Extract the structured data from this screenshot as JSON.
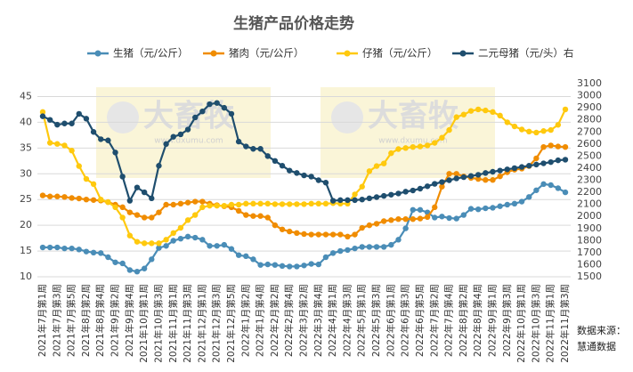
{
  "chart_data": {
    "type": "line",
    "title": "生猪产品价格走势",
    "watermark": {
      "brand": "大畜牧",
      "site": "www.dxumu.com"
    },
    "source_label": "数据来源：",
    "source": "慧通数据",
    "categories": [
      "2021年7月第1周",
      null,
      "2021年7月第3周",
      null,
      "2021年7月第5周",
      null,
      "2021年8月第2周",
      null,
      "2021年8月第4周",
      null,
      "2021年9月第2周",
      null,
      "2021年9月第4周",
      null,
      "2021年10月第1周",
      null,
      "2021年10月第3周",
      null,
      "2021年11月第1周",
      null,
      "2021年11月第3周",
      null,
      "2021年12月第1周",
      null,
      "2021年12月第3周",
      null,
      "2021年12月第5周",
      null,
      "2022年1月第2周",
      null,
      "2022年1月第4周",
      null,
      "2022年2月第2周",
      null,
      "2022年2月第4周",
      null,
      "2022年3月第2周",
      null,
      "2022年3月第4周",
      null,
      "2022年4月第1周",
      null,
      "2022年4月第3周",
      null,
      "2022年5月第1周",
      null,
      "2022年5月第3周",
      null,
      "2022年6月第1周",
      null,
      "2022年6月第3周",
      null,
      "2022年6月第5周",
      null,
      "2022年7月第2周",
      null,
      "2022年7月第4周",
      null,
      "2022年8月第2周",
      null,
      "2022年8月第4周",
      null,
      "2022年9月第1周",
      null,
      "2022年9月第3周",
      null,
      "2022年10月第1周",
      null,
      "2022年10月第3周",
      null,
      "2022年11月第1周",
      null,
      "2022年11月第3周"
    ],
    "series": [
      {
        "name": "生猪（元/公斤）",
        "color": "#4a8db7",
        "values": [
          15.7,
          15.7,
          15.7,
          15.5,
          15.5,
          15.3,
          14.9,
          14.7,
          14.6,
          13.8,
          12.8,
          12.6,
          11.3,
          11.0,
          11.6,
          13.4,
          15.6,
          16.0,
          17.0,
          17.4,
          17.8,
          17.6,
          17.2,
          16.0,
          16.0,
          16.2,
          15.4,
          14.2,
          14.0,
          13.4,
          12.3,
          12.4,
          12.3,
          12.1,
          12.0,
          12.0,
          12.2,
          12.5,
          12.4,
          13.8,
          14.6,
          15.0,
          15.2,
          15.5,
          15.8,
          15.8,
          15.8,
          15.8,
          16.2,
          17.2,
          19.4,
          23.0,
          23.0,
          22.5,
          21.5,
          21.7,
          21.4,
          21.3,
          22.0,
          23.2,
          23.1,
          23.3,
          23.4,
          23.7,
          24.0,
          24.2,
          24.6,
          25.5,
          26.8,
          28.0,
          27.8,
          27.2,
          26.4
        ]
      },
      {
        "name": "猪肉（元/公斤）",
        "color": "#f08c00",
        "values": [
          25.8,
          25.6,
          25.6,
          25.5,
          25.3,
          25.2,
          25.0,
          24.9,
          24.8,
          24.5,
          24.0,
          23.5,
          22.5,
          22.0,
          21.5,
          21.5,
          22.5,
          24.0,
          24.0,
          24.2,
          24.4,
          24.6,
          24.6,
          24.2,
          23.9,
          23.7,
          23.5,
          22.8,
          22.0,
          21.8,
          21.8,
          21.5,
          20.0,
          19.2,
          18.8,
          18.5,
          18.3,
          18.2,
          18.2,
          18.2,
          18.2,
          18.2,
          17.8,
          18.2,
          19.5,
          20.0,
          20.3,
          20.8,
          21.0,
          21.2,
          21.2,
          21.2,
          21.3,
          21.6,
          23.5,
          27.5,
          30.0,
          30.0,
          29.5,
          29.2,
          29.0,
          28.8,
          28.8,
          29.5,
          30.3,
          30.8,
          31.0,
          31.5,
          33.0,
          35.2,
          35.5,
          35.3,
          35.2
        ]
      },
      {
        "name": "仔猪（元/公斤）",
        "color": "#ffc90e",
        "values": [
          42.0,
          36.0,
          35.8,
          35.5,
          34.5,
          31.5,
          29.0,
          28.0,
          25.0,
          24.5,
          23.5,
          21.5,
          18.0,
          16.8,
          16.5,
          16.5,
          16.5,
          17.2,
          18.5,
          19.5,
          21.0,
          22.0,
          23.5,
          23.8,
          23.8,
          23.8,
          24.0,
          24.0,
          24.2,
          24.2,
          24.2,
          24.2,
          24.1,
          24.1,
          24.1,
          24.1,
          24.1,
          24.2,
          24.2,
          24.2,
          24.3,
          24.2,
          24.2,
          26.0,
          27.5,
          30.5,
          31.5,
          32.0,
          34.0,
          34.8,
          35.0,
          35.2,
          35.3,
          35.5,
          36.0,
          37.0,
          38.5,
          41.0,
          41.5,
          42.2,
          42.5,
          42.3,
          42.0,
          41.3,
          40.0,
          39.2,
          38.6,
          38.2,
          38.0,
          38.3,
          38.5,
          39.5,
          42.5
        ]
      },
      {
        "name": "二元母猪（元/头）右",
        "color": "#1f4e6e",
        "axis": "y2",
        "values": [
          2830,
          2800,
          2760,
          2770,
          2770,
          2850,
          2810,
          2700,
          2640,
          2630,
          2530,
          2330,
          2130,
          2240,
          2200,
          2150,
          2420,
          2600,
          2660,
          2680,
          2720,
          2820,
          2870,
          2930,
          2940,
          2900,
          2850,
          2620,
          2580,
          2560,
          2560,
          2500,
          2460,
          2420,
          2380,
          2360,
          2340,
          2330,
          2300,
          2280,
          2130,
          2135,
          2135,
          2135,
          2140,
          2150,
          2160,
          2170,
          2180,
          2190,
          2205,
          2215,
          2230,
          2250,
          2270,
          2285,
          2300,
          2315,
          2325,
          2335,
          2345,
          2360,
          2370,
          2380,
          2390,
          2400,
          2410,
          2420,
          2430,
          2440,
          2450,
          2465,
          2470
        ]
      }
    ],
    "ylim": [
      10,
      47.5
    ],
    "yticks": [
      10,
      15,
      20,
      25,
      30,
      35,
      40,
      45
    ],
    "y2lim": [
      1500,
      3100
    ],
    "y2ticks": [
      1500,
      1600,
      1700,
      1800,
      1900,
      2000,
      2100,
      2200,
      2300,
      2400,
      2500,
      2600,
      2700,
      2800,
      2900,
      3000,
      3100
    ],
    "grid": true
  }
}
